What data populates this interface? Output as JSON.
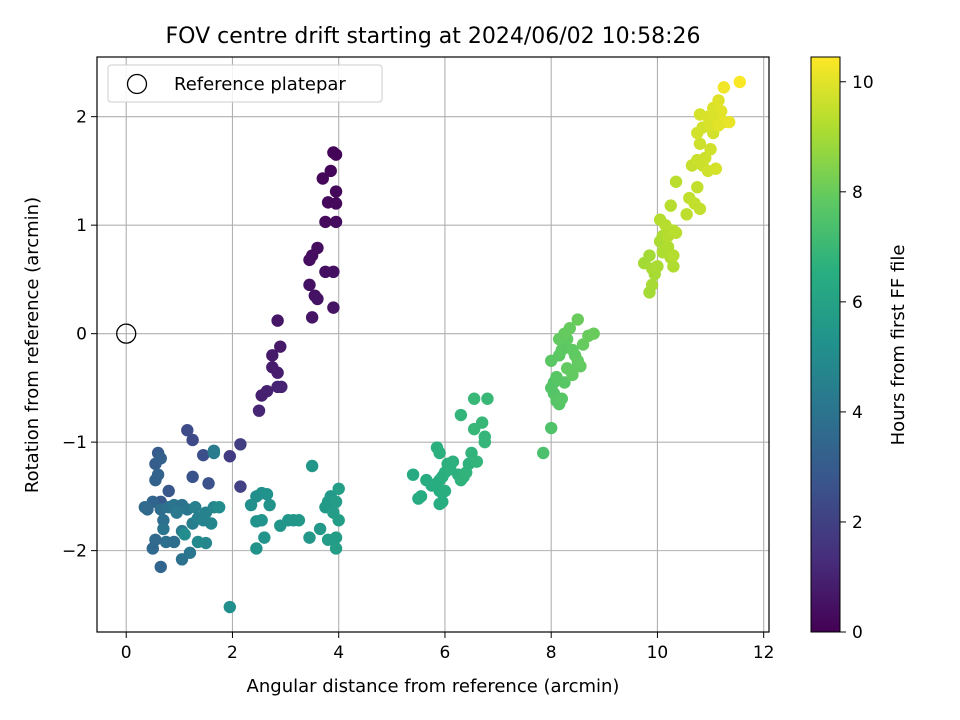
{
  "chart_data": {
    "type": "scatter",
    "title": "FOV centre drift starting at 2024/06/02 10:58:26",
    "xlabel": "Angular distance from reference (arcmin)",
    "ylabel": "Rotation from reference (arcmin)",
    "xlim": [
      -0.55,
      12.1
    ],
    "ylim": [
      -2.75,
      2.55
    ],
    "xticks": [
      0,
      2,
      4,
      6,
      8,
      10,
      12
    ],
    "yticks": [
      -2,
      -1,
      0,
      1,
      2
    ],
    "grid": true,
    "legend": {
      "placement": "top-left",
      "entries": [
        "Reference platepar"
      ]
    },
    "reference_point": {
      "x": 0,
      "y": 0,
      "label": "Reference platepar"
    },
    "colorbar": {
      "label": "Hours from first FF file",
      "min": 0,
      "max": 10.45,
      "ticks": [
        0,
        2,
        4,
        6,
        8,
        10
      ],
      "colormap": "viridis"
    },
    "points": [
      [
        3.9,
        1.67,
        0.1
      ],
      [
        3.95,
        1.65,
        0.12
      ],
      [
        3.85,
        1.5,
        0.15
      ],
      [
        3.7,
        1.43,
        0.18
      ],
      [
        3.95,
        1.31,
        0.2
      ],
      [
        3.8,
        1.21,
        0.22
      ],
      [
        3.95,
        1.2,
        0.25
      ],
      [
        3.75,
        1.03,
        0.28
      ],
      [
        3.95,
        1.03,
        0.3
      ],
      [
        3.6,
        0.79,
        0.35
      ],
      [
        3.5,
        0.72,
        0.38
      ],
      [
        3.45,
        0.68,
        0.4
      ],
      [
        3.75,
        0.57,
        0.42
      ],
      [
        3.9,
        0.57,
        0.45
      ],
      [
        3.45,
        0.45,
        0.48
      ],
      [
        3.55,
        0.35,
        0.5
      ],
      [
        3.6,
        0.32,
        0.52
      ],
      [
        3.5,
        0.15,
        0.55
      ],
      [
        3.9,
        0.24,
        0.57
      ],
      [
        2.85,
        0.12,
        0.6
      ],
      [
        2.9,
        -0.12,
        0.7
      ],
      [
        2.75,
        -0.2,
        0.75
      ],
      [
        2.75,
        -0.31,
        0.8
      ],
      [
        2.85,
        -0.36,
        0.85
      ],
      [
        2.55,
        -0.57,
        0.9
      ],
      [
        2.65,
        -0.53,
        0.95
      ],
      [
        2.85,
        -0.49,
        1.0
      ],
      [
        2.92,
        -0.49,
        1.05
      ],
      [
        2.5,
        -0.71,
        1.1
      ],
      [
        1.95,
        -1.13,
        1.8
      ],
      [
        2.15,
        -1.02,
        1.9
      ],
      [
        2.15,
        -1.41,
        2.0
      ],
      [
        1.25,
        -0.98,
        2.3
      ],
      [
        1.15,
        -0.89,
        2.4
      ],
      [
        1.45,
        -1.12,
        2.5
      ],
      [
        1.55,
        -1.38,
        2.6
      ],
      [
        1.25,
        -1.32,
        2.7
      ],
      [
        0.8,
        -1.45,
        2.8
      ],
      [
        0.65,
        -1.55,
        2.9
      ],
      [
        0.6,
        -1.1,
        3.0
      ],
      [
        0.55,
        -1.2,
        3.1
      ],
      [
        0.55,
        -1.35,
        3.2
      ],
      [
        0.6,
        -1.3,
        3.3
      ],
      [
        0.5,
        -1.55,
        3.4
      ],
      [
        0.4,
        -1.62,
        3.5
      ],
      [
        0.35,
        -1.6,
        3.6
      ],
      [
        0.65,
        -1.62,
        3.7
      ],
      [
        0.7,
        -1.72,
        3.8
      ],
      [
        0.8,
        -1.6,
        3.9
      ],
      [
        0.9,
        -1.58,
        4.0
      ],
      [
        1.05,
        -1.58,
        3.9
      ],
      [
        1.15,
        -1.62,
        4.1
      ],
      [
        0.95,
        -1.65,
        4.2
      ],
      [
        0.7,
        -1.8,
        4.0
      ],
      [
        0.75,
        -1.92,
        3.8
      ],
      [
        0.55,
        -1.9,
        3.6
      ],
      [
        0.5,
        -1.98,
        3.5
      ],
      [
        0.65,
        -2.15,
        3.4
      ],
      [
        0.9,
        -1.92,
        3.7
      ],
      [
        1.05,
        -2.08,
        3.9
      ],
      [
        1.2,
        -2.02,
        4.1
      ],
      [
        1.05,
        -1.82,
        4.3
      ],
      [
        1.25,
        -1.75,
        4.4
      ],
      [
        1.35,
        -1.7,
        4.5
      ],
      [
        1.5,
        -1.65,
        4.6
      ],
      [
        1.6,
        -1.75,
        4.7
      ],
      [
        1.5,
        -1.93,
        4.8
      ],
      [
        1.35,
        -1.92,
        4.9
      ],
      [
        1.1,
        -1.85,
        5.0
      ],
      [
        1.3,
        -1.6,
        4.5
      ],
      [
        1.45,
        -1.72,
        4.6
      ],
      [
        1.65,
        -1.6,
        4.8
      ],
      [
        1.75,
        -1.6,
        5.0
      ],
      [
        1.65,
        -1.1,
        4.4
      ],
      [
        1.65,
        -1.08,
        4.3
      ],
      [
        0.65,
        -1.15,
        3.2
      ],
      [
        2.45,
        -1.5,
        5.1
      ],
      [
        2.55,
        -1.47,
        5.2
      ],
      [
        2.65,
        -1.48,
        5.25
      ],
      [
        2.35,
        -1.58,
        5.2
      ],
      [
        2.7,
        -1.58,
        5.3
      ],
      [
        2.45,
        -1.73,
        5.3
      ],
      [
        2.55,
        -1.72,
        5.35
      ],
      [
        2.6,
        -1.88,
        5.35
      ],
      [
        2.45,
        -1.98,
        5.3
      ],
      [
        1.95,
        -2.52,
        5.2
      ],
      [
        2.9,
        -1.77,
        5.4
      ],
      [
        3.05,
        -1.72,
        5.45
      ],
      [
        3.15,
        -1.72,
        5.5
      ],
      [
        3.25,
        -1.72,
        5.55
      ],
      [
        3.45,
        -1.88,
        5.5
      ],
      [
        3.5,
        -1.22,
        5.5
      ],
      [
        3.65,
        -1.8,
        5.55
      ],
      [
        3.8,
        -1.55,
        5.6
      ],
      [
        3.85,
        -1.5,
        5.6
      ],
      [
        3.75,
        -1.6,
        5.65
      ],
      [
        3.85,
        -1.6,
        5.65
      ],
      [
        3.9,
        -1.65,
        5.7
      ],
      [
        3.95,
        -1.55,
        5.7
      ],
      [
        4.0,
        -1.72,
        5.75
      ],
      [
        4.0,
        -1.43,
        5.8
      ],
      [
        3.95,
        -1.88,
        5.75
      ],
      [
        3.95,
        -1.98,
        5.8
      ],
      [
        3.8,
        -1.9,
        5.7
      ],
      [
        5.4,
        -1.3,
        6.3
      ],
      [
        5.5,
        -1.52,
        6.35
      ],
      [
        5.55,
        -1.5,
        6.4
      ],
      [
        5.65,
        -1.35,
        6.4
      ],
      [
        5.75,
        -1.4,
        6.45
      ],
      [
        5.85,
        -1.38,
        6.5
      ],
      [
        5.9,
        -1.35,
        6.5
      ],
      [
        5.95,
        -1.32,
        6.55
      ],
      [
        5.9,
        -1.45,
        6.5
      ],
      [
        6.0,
        -1.45,
        6.55
      ],
      [
        5.95,
        -1.55,
        6.5
      ],
      [
        5.9,
        -1.57,
        6.45
      ],
      [
        6.0,
        -1.28,
        6.6
      ],
      [
        6.05,
        -1.2,
        6.6
      ],
      [
        6.15,
        -1.18,
        6.65
      ],
      [
        6.25,
        -1.3,
        6.65
      ],
      [
        6.3,
        -1.35,
        6.7
      ],
      [
        6.35,
        -1.32,
        6.7
      ],
      [
        6.4,
        -1.28,
        6.75
      ],
      [
        6.45,
        -1.2,
        6.7
      ],
      [
        6.5,
        -1.1,
        6.75
      ],
      [
        6.6,
        -1.18,
        6.8
      ],
      [
        6.75,
        -1.0,
        6.85
      ],
      [
        6.75,
        -0.95,
        6.85
      ],
      [
        6.7,
        -0.82,
        6.9
      ],
      [
        6.3,
        -0.75,
        6.8
      ],
      [
        6.55,
        -0.88,
        6.9
      ],
      [
        6.55,
        -0.6,
        6.95
      ],
      [
        6.8,
        -0.6,
        6.95
      ],
      [
        5.85,
        -1.05,
        6.6
      ],
      [
        5.9,
        -1.1,
        6.6
      ],
      [
        6.1,
        -1.25,
        6.62
      ],
      [
        7.85,
        -1.1,
        7.4
      ],
      [
        8.0,
        -0.87,
        7.5
      ],
      [
        8.0,
        -0.5,
        7.6
      ],
      [
        8.05,
        -0.55,
        7.6
      ],
      [
        8.05,
        -0.45,
        7.6
      ],
      [
        8.1,
        -0.62,
        7.65
      ],
      [
        8.15,
        -0.65,
        7.65
      ],
      [
        8.2,
        -0.6,
        7.7
      ],
      [
        8.25,
        -0.45,
        7.7
      ],
      [
        8.1,
        -0.4,
        7.7
      ],
      [
        8.0,
        -0.25,
        7.75
      ],
      [
        8.15,
        -0.2,
        7.75
      ],
      [
        8.2,
        -0.15,
        7.8
      ],
      [
        8.25,
        -0.1,
        7.8
      ],
      [
        8.3,
        -0.05,
        7.85
      ],
      [
        8.4,
        -0.15,
        7.85
      ],
      [
        8.45,
        -0.2,
        7.85
      ],
      [
        8.5,
        -0.3,
        7.9
      ],
      [
        8.55,
        -0.3,
        7.9
      ],
      [
        8.5,
        -0.25,
        7.9
      ],
      [
        8.4,
        -0.38,
        7.9
      ],
      [
        8.3,
        -0.32,
        7.9
      ],
      [
        8.6,
        -0.1,
        7.95
      ],
      [
        8.7,
        -0.02,
        8.0
      ],
      [
        8.8,
        0.0,
        8.0
      ],
      [
        8.5,
        0.13,
        8.0
      ],
      [
        8.35,
        0.05,
        7.95
      ],
      [
        8.25,
        0.0,
        7.95
      ],
      [
        8.15,
        -0.05,
        7.9
      ],
      [
        9.75,
        0.65,
        9.0
      ],
      [
        9.85,
        0.72,
        9.0
      ],
      [
        9.9,
        0.6,
        9.05
      ],
      [
        9.95,
        0.55,
        9.05
      ],
      [
        10.0,
        0.62,
        9.1
      ],
      [
        9.9,
        0.45,
        9.05
      ],
      [
        9.85,
        0.38,
        9.0
      ],
      [
        10.05,
        0.85,
        9.1
      ],
      [
        10.1,
        0.9,
        9.15
      ],
      [
        10.1,
        0.75,
        9.15
      ],
      [
        10.2,
        0.8,
        9.2
      ],
      [
        10.25,
        0.7,
        9.2
      ],
      [
        10.3,
        0.62,
        9.2
      ],
      [
        10.3,
        0.72,
        9.25
      ],
      [
        10.2,
        0.9,
        9.25
      ],
      [
        10.05,
        1.05,
        9.25
      ],
      [
        10.15,
        1.0,
        9.3
      ],
      [
        10.3,
        0.95,
        9.3
      ],
      [
        10.35,
        0.93,
        9.35
      ],
      [
        10.25,
        1.18,
        9.3
      ],
      [
        10.35,
        1.4,
        9.35
      ],
      [
        10.55,
        1.1,
        9.4
      ],
      [
        10.6,
        1.25,
        9.45
      ],
      [
        10.7,
        1.2,
        9.5
      ],
      [
        10.75,
        1.35,
        9.5
      ],
      [
        10.8,
        1.15,
        9.5
      ],
      [
        10.65,
        1.55,
        9.55
      ],
      [
        10.75,
        1.6,
        9.6
      ],
      [
        10.85,
        1.55,
        9.6
      ],
      [
        10.8,
        1.75,
        9.65
      ],
      [
        10.9,
        1.62,
        9.65
      ],
      [
        10.95,
        1.5,
        9.7
      ],
      [
        11.0,
        1.7,
        9.7
      ],
      [
        11.05,
        1.85,
        9.75
      ],
      [
        10.75,
        1.85,
        9.75
      ],
      [
        10.85,
        1.9,
        9.75
      ],
      [
        11.1,
        1.52,
        9.8
      ],
      [
        10.8,
        2.02,
        9.8
      ],
      [
        10.95,
        2.0,
        9.85
      ],
      [
        11.0,
        1.92,
        9.85
      ],
      [
        11.05,
        2.08,
        9.9
      ],
      [
        11.15,
        2.15,
        9.95
      ],
      [
        11.2,
        2.05,
        10.0
      ],
      [
        11.25,
        1.95,
        10.05
      ],
      [
        11.35,
        1.95,
        10.1
      ],
      [
        11.05,
        2.0,
        9.9
      ],
      [
        11.15,
        1.92,
        10.0
      ],
      [
        11.25,
        2.27,
        10.25
      ],
      [
        11.55,
        2.32,
        10.4
      ]
    ]
  }
}
